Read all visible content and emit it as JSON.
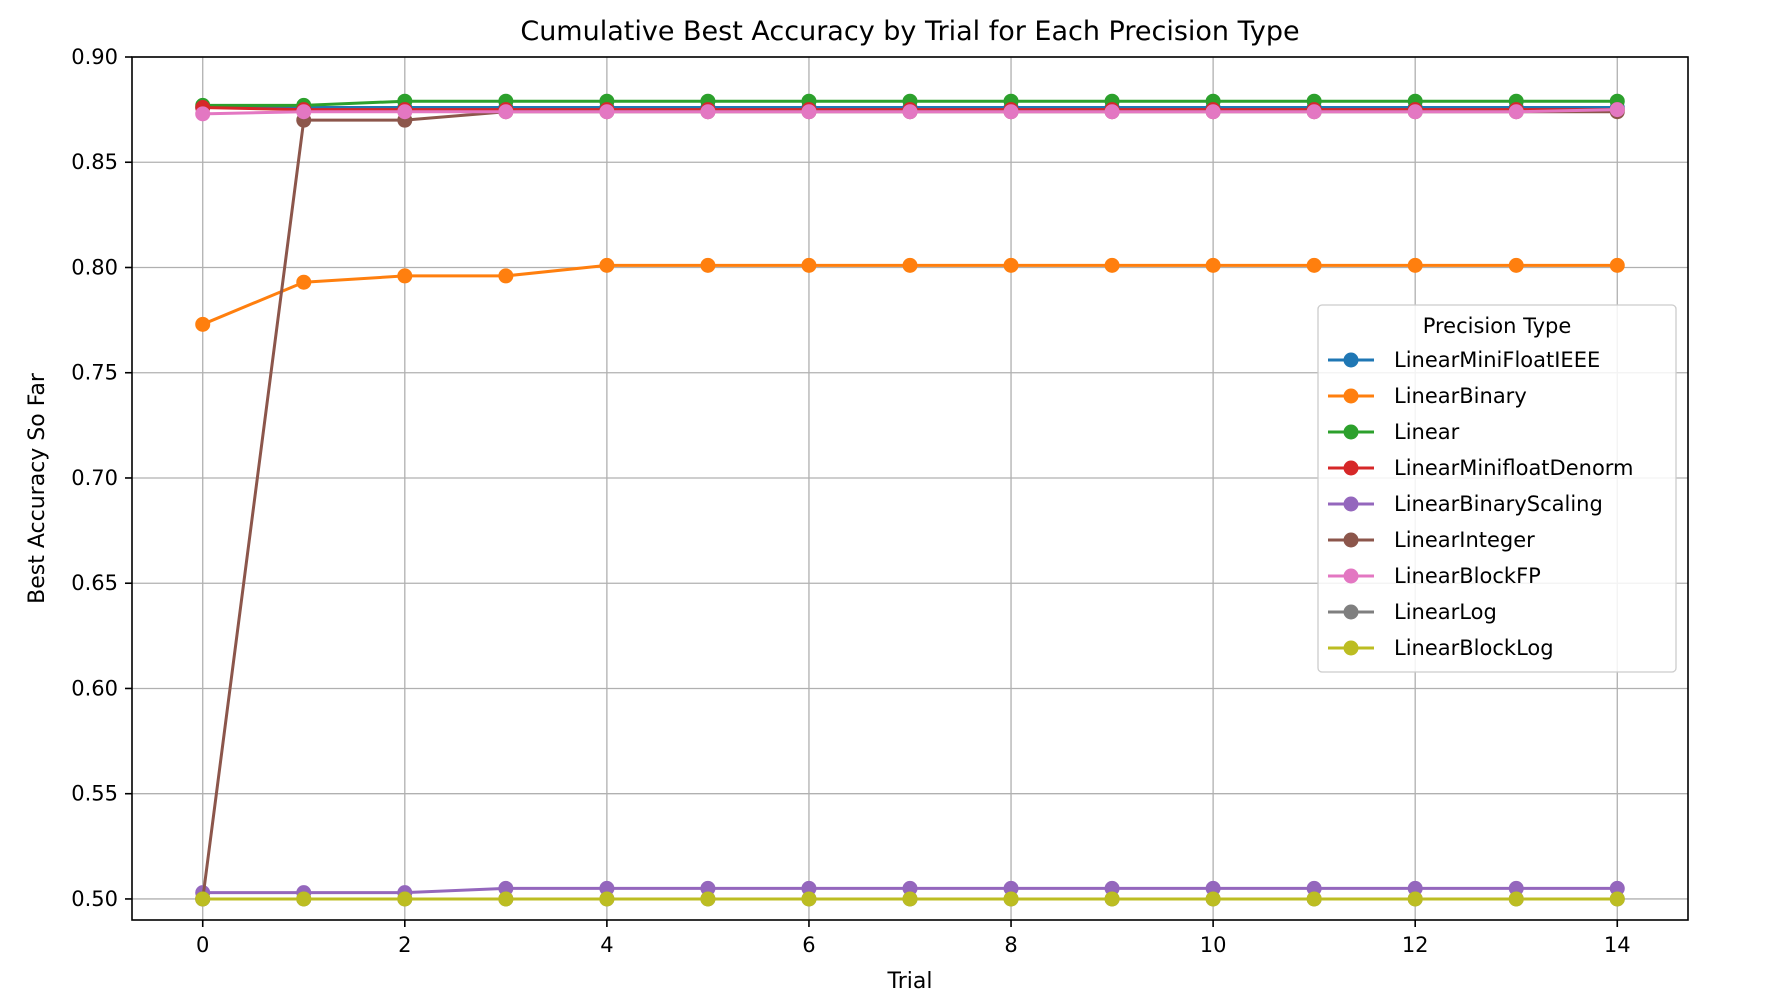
{
  "chart_data": {
    "type": "line",
    "title": "Cumulative Best Accuracy by Trial for Each Precision Type",
    "xlabel": "Trial",
    "ylabel": "Best Accuracy So Far",
    "xlim": [
      -0.7,
      14.7
    ],
    "ylim": [
      0.49,
      0.9
    ],
    "xticks": [
      0,
      2,
      4,
      6,
      8,
      10,
      12,
      14
    ],
    "yticks": [
      0.5,
      0.55,
      0.6,
      0.65,
      0.7,
      0.75,
      0.8,
      0.85,
      0.9
    ],
    "ytick_labels": [
      "0.50",
      "0.55",
      "0.60",
      "0.65",
      "0.70",
      "0.75",
      "0.80",
      "0.85",
      "0.90"
    ],
    "grid": true,
    "legend": {
      "title": "Precision Type",
      "placement": "center-right"
    },
    "x": [
      0,
      1,
      2,
      3,
      4,
      5,
      6,
      7,
      8,
      9,
      10,
      11,
      12,
      13,
      14
    ],
    "series": [
      {
        "name": "LinearMiniFloatIEEE",
        "color": "#1f77b4",
        "values": [
          0.876,
          0.876,
          0.876,
          0.876,
          0.876,
          0.876,
          0.876,
          0.876,
          0.876,
          0.876,
          0.876,
          0.876,
          0.876,
          0.876,
          0.876
        ]
      },
      {
        "name": "LinearBinary",
        "color": "#ff7f0e",
        "values": [
          0.773,
          0.793,
          0.796,
          0.796,
          0.801,
          0.801,
          0.801,
          0.801,
          0.801,
          0.801,
          0.801,
          0.801,
          0.801,
          0.801,
          0.801
        ]
      },
      {
        "name": "Linear",
        "color": "#2ca02c",
        "values": [
          0.877,
          0.877,
          0.879,
          0.879,
          0.879,
          0.879,
          0.879,
          0.879,
          0.879,
          0.879,
          0.879,
          0.879,
          0.879,
          0.879,
          0.879
        ]
      },
      {
        "name": "LinearMinifloatDenorm",
        "color": "#d62728",
        "values": [
          0.876,
          0.875,
          0.875,
          0.875,
          0.875,
          0.875,
          0.875,
          0.875,
          0.875,
          0.875,
          0.875,
          0.875,
          0.875,
          0.875,
          0.875
        ]
      },
      {
        "name": "LinearBinaryScaling",
        "color": "#9467bd",
        "values": [
          0.503,
          0.503,
          0.503,
          0.505,
          0.505,
          0.505,
          0.505,
          0.505,
          0.505,
          0.505,
          0.505,
          0.505,
          0.505,
          0.505,
          0.505
        ]
      },
      {
        "name": "LinearInteger",
        "color": "#8c564b",
        "values": [
          0.5,
          0.87,
          0.87,
          0.874,
          0.874,
          0.874,
          0.874,
          0.874,
          0.874,
          0.874,
          0.874,
          0.874,
          0.874,
          0.874,
          0.874
        ]
      },
      {
        "name": "LinearBlockFP",
        "color": "#e377c2",
        "values": [
          0.873,
          0.874,
          0.874,
          0.874,
          0.874,
          0.874,
          0.874,
          0.874,
          0.874,
          0.874,
          0.874,
          0.874,
          0.874,
          0.874,
          0.875
        ]
      },
      {
        "name": "LinearLog",
        "color": "#7f7f7f",
        "values": [
          0.5,
          0.5,
          0.5,
          0.5,
          0.5,
          0.5,
          0.5,
          0.5,
          0.5,
          0.5,
          0.5,
          0.5,
          0.5,
          0.5,
          0.5
        ]
      },
      {
        "name": "LinearBlockLog",
        "color": "#bcbd22",
        "values": [
          0.5,
          0.5,
          0.5,
          0.5,
          0.5,
          0.5,
          0.5,
          0.5,
          0.5,
          0.5,
          0.5,
          0.5,
          0.5,
          0.5,
          0.5
        ]
      }
    ]
  }
}
